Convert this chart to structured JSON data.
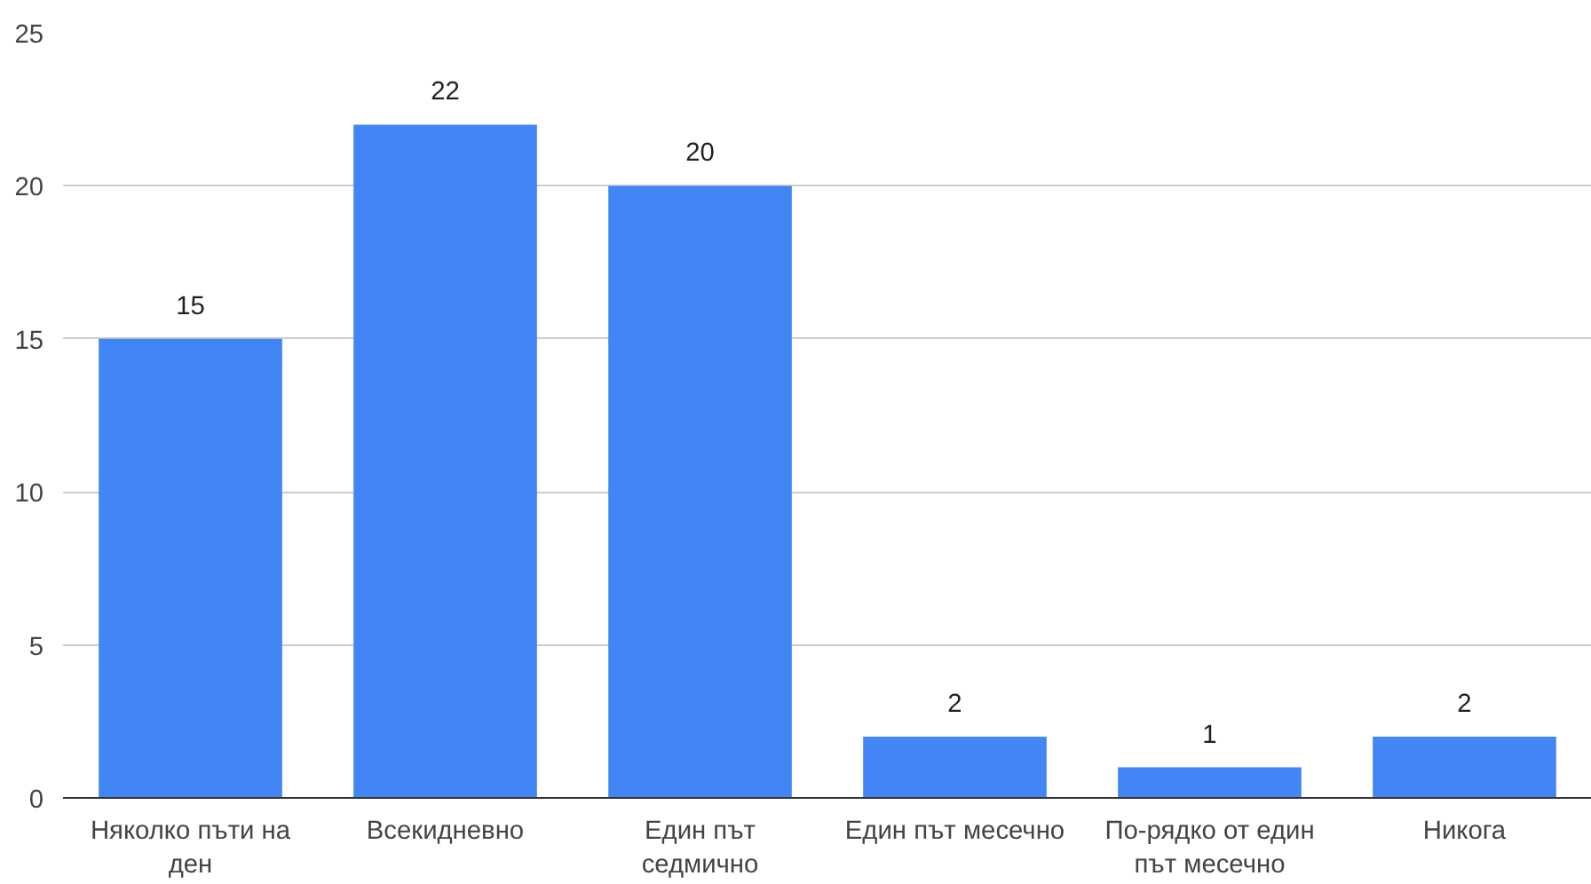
{
  "chart_data": {
    "type": "bar",
    "categories": [
      "Няколко пъти на ден",
      "Всекидневно",
      "Един път седмично",
      "Един път месечно",
      "По-рядко от един път месечно",
      "Никога"
    ],
    "values": [
      15,
      22,
      20,
      2,
      1,
      2
    ],
    "color": "#4285f4",
    "ylim": [
      0,
      25
    ],
    "yticks": [
      0,
      5,
      10,
      15,
      20,
      25
    ],
    "grid": "y",
    "data_labels": true
  }
}
